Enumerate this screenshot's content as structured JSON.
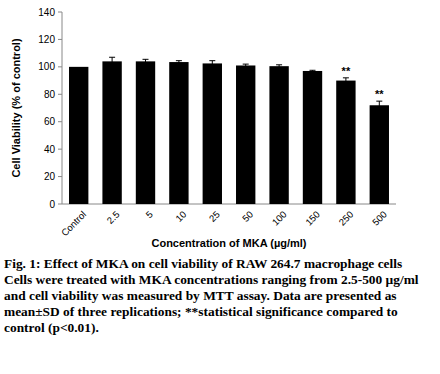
{
  "chart_data": {
    "type": "bar",
    "categories": [
      "Control",
      "2.5",
      "5",
      "10",
      "25",
      "50",
      "100",
      "150",
      "250",
      "500"
    ],
    "values": [
      100,
      104,
      104,
      103.5,
      102.5,
      101,
      100.5,
      97,
      90,
      72
    ],
    "errors": [
      0,
      3,
      1.5,
      1,
      2,
      1,
      1,
      0.5,
      2,
      3
    ],
    "color": "#000000",
    "x_label": "Concentration of MKA (µg/ml)",
    "y_label": "Cell Viability (% of control)",
    "ylim": [
      0,
      140
    ],
    "yticks": [
      0,
      20,
      40,
      60,
      80,
      100,
      120,
      140
    ],
    "grid": false,
    "annotations": [
      {
        "category": "250",
        "text": "**"
      },
      {
        "category": "500",
        "text": "**"
      }
    ]
  },
  "caption": {
    "title": "Fig. 1: Effect of MKA on cell viability of RAW 264.7 macrophage cells",
    "text": "Cells were treated with MKA concentrations ranging from 2.5-500 µg/ml and cell viability was measured by MTT assay. Data are presented as mean±SD of three replications; **statistical significance compared to control (p<0.01)."
  }
}
